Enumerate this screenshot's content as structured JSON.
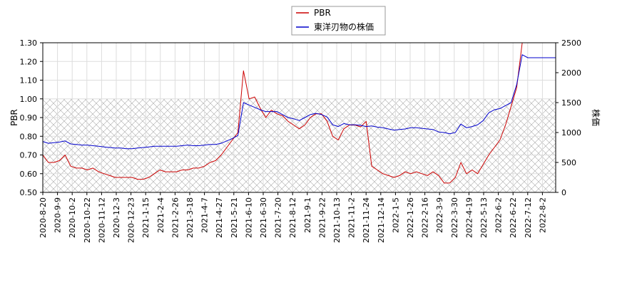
{
  "chart_data": {
    "type": "line",
    "title": "",
    "xlabel": "",
    "ylabel_left": "PBR",
    "ylabel_right": "株価",
    "x_ticks": [
      "2020-8-20",
      "2020-9-9",
      "2020-10-2",
      "2020-10-22",
      "2020-11-12",
      "2020-12-3",
      "2020-12-23",
      "2021-1-15",
      "2021-2-4",
      "2021-2-26",
      "2021-3-18",
      "2021-4-7",
      "2021-4-27",
      "2021-5-21",
      "2021-6-10",
      "2021-6-30",
      "2021-7-20",
      "2021-8-12",
      "2021-9-1",
      "2021-9-22",
      "2021-10-13",
      "2021-11-2",
      "2021-11-24",
      "2021-12-14",
      "2022-1-5",
      "2022-1-26",
      "2022-2-16",
      "2022-3-9",
      "2022-3-30",
      "2022-4-19",
      "2022-5-13",
      "2022-6-2",
      "2022-6-22",
      "2022-7-12",
      "2022-8-2"
    ],
    "ylim_left": [
      0.5,
      1.3
    ],
    "yticks_left": [
      "0.50",
      "0.60",
      "0.70",
      "0.80",
      "0.90",
      "1.00",
      "1.10",
      "1.20",
      "1.30"
    ],
    "ylim_right": [
      0,
      2500
    ],
    "yticks_right": [
      "0",
      "500",
      "1000",
      "1500",
      "2000",
      "2500"
    ],
    "hatched_band_left": [
      0.5,
      1.0
    ],
    "grid": true,
    "legend_position": "top-center",
    "series": [
      {
        "name": "PBR",
        "color": "#cc0000",
        "axis": "left",
        "values": [
          0.7,
          0.66,
          0.66,
          0.67,
          0.7,
          0.64,
          0.63,
          0.63,
          0.62,
          0.63,
          0.61,
          0.6,
          0.59,
          0.58,
          0.58,
          0.58,
          0.58,
          0.57,
          0.57,
          0.58,
          0.6,
          0.62,
          0.61,
          0.61,
          0.61,
          0.62,
          0.62,
          0.63,
          0.63,
          0.64,
          0.66,
          0.67,
          0.7,
          0.74,
          0.78,
          0.82,
          1.15,
          1.0,
          1.01,
          0.95,
          0.9,
          0.94,
          0.92,
          0.91,
          0.88,
          0.86,
          0.84,
          0.86,
          0.9,
          0.92,
          0.92,
          0.88,
          0.8,
          0.78,
          0.84,
          0.86,
          0.86,
          0.85,
          0.88,
          0.64,
          0.62,
          0.6,
          0.59,
          0.58,
          0.59,
          0.61,
          0.6,
          0.61,
          0.6,
          0.59,
          0.61,
          0.59,
          0.55,
          0.55,
          0.58,
          0.66,
          0.6,
          0.62,
          0.6,
          0.65,
          0.7,
          0.74,
          0.78,
          0.86,
          0.96,
          1.06,
          1.3,
          1.3,
          1.3,
          1.3,
          1.3,
          1.3,
          1.3
        ]
      },
      {
        "name": "東洋刃物の株価",
        "color": "#0000cc",
        "axis": "right",
        "values": [
          850,
          820,
          830,
          840,
          860,
          810,
          800,
          790,
          790,
          780,
          770,
          760,
          750,
          740,
          740,
          730,
          730,
          740,
          750,
          760,
          770,
          770,
          770,
          770,
          770,
          780,
          790,
          780,
          780,
          790,
          800,
          800,
          820,
          860,
          900,
          950,
          1500,
          1460,
          1420,
          1380,
          1350,
          1350,
          1350,
          1300,
          1250,
          1230,
          1200,
          1250,
          1300,
          1320,
          1300,
          1260,
          1130,
          1100,
          1150,
          1130,
          1130,
          1120,
          1100,
          1110,
          1090,
          1080,
          1060,
          1040,
          1050,
          1060,
          1080,
          1080,
          1070,
          1060,
          1050,
          1010,
          1000,
          980,
          1000,
          1140,
          1080,
          1100,
          1130,
          1200,
          1330,
          1380,
          1400,
          1450,
          1500,
          1800,
          2300,
          2250,
          2250,
          2250,
          2250,
          2250,
          2250
        ]
      }
    ]
  }
}
